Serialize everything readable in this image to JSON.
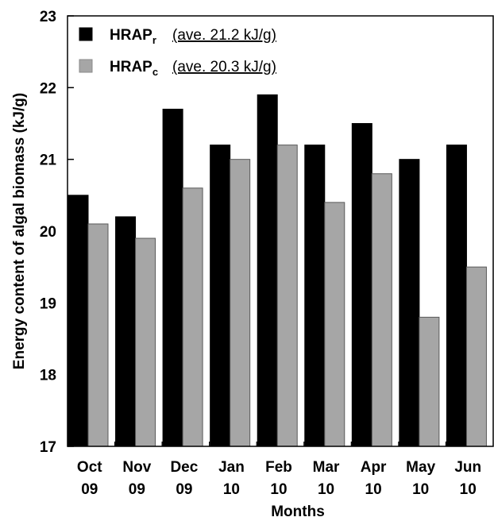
{
  "chart_data": {
    "type": "bar",
    "xlabel": "Months",
    "ylabel": "Energy content of algal biomass (kJ/g)",
    "ylim": [
      17,
      23
    ],
    "yticks": [
      "17",
      "18",
      "19",
      "20",
      "21",
      "22",
      "23"
    ],
    "grid": false,
    "legend_position": "top-left",
    "categories": [
      {
        "line1": "Oct",
        "line2": "09"
      },
      {
        "line1": "Nov",
        "line2": "09"
      },
      {
        "line1": "Dec",
        "line2": "09"
      },
      {
        "line1": "Jan",
        "line2": "10"
      },
      {
        "line1": "Feb",
        "line2": "10"
      },
      {
        "line1": "Mar",
        "line2": "10"
      },
      {
        "line1": "Apr",
        "line2": "10"
      },
      {
        "line1": "May",
        "line2": "10"
      },
      {
        "line1": "Jun",
        "line2": "10"
      }
    ],
    "series": [
      {
        "name": "HRAP",
        "subscript": "r",
        "note": "(ave. 21.2 kJ/g)",
        "color": "#000000",
        "values": [
          20.5,
          20.2,
          21.7,
          21.2,
          21.9,
          21.2,
          21.5,
          21.0,
          21.2
        ]
      },
      {
        "name": "HRAP",
        "subscript": "c",
        "note": "(ave. 20.3 kJ/g)",
        "color": "#a6a6a6",
        "values": [
          20.1,
          19.9,
          20.6,
          21.0,
          21.2,
          20.4,
          20.8,
          18.8,
          19.5
        ]
      }
    ]
  }
}
